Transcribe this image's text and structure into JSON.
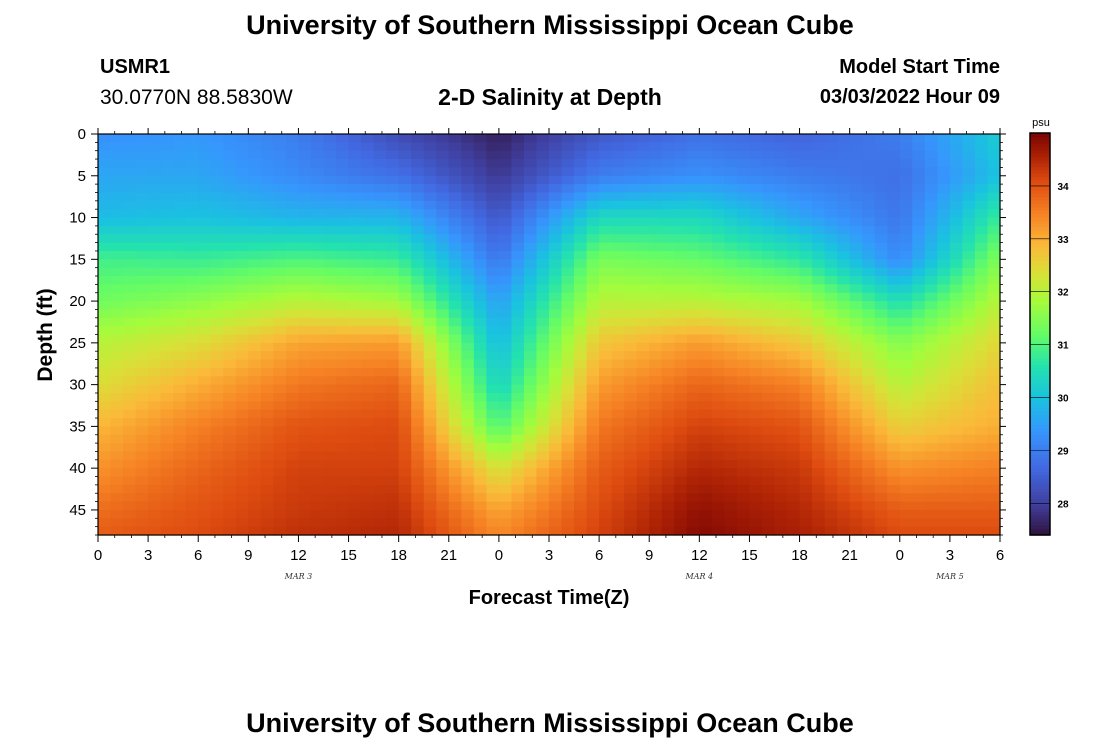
{
  "header": {
    "title": "University of Southern Mississippi Ocean Cube",
    "station": "USMR1",
    "coordinates": "30.0770N  88.5830W",
    "subtitle": "2-D Salinity at Depth",
    "model_start_label": "Model Start Time",
    "model_start_value": "03/03/2022 Hour 09"
  },
  "footer": {
    "title": "University of Southern Mississippi Ocean Cube"
  },
  "chart_data": {
    "type": "heatmap",
    "title": "2-D Salinity at Depth",
    "xlabel": "Forecast Time(Z)",
    "ylabel": "Depth (ft)",
    "x_tick_labels": [
      "0",
      "3",
      "6",
      "9",
      "12",
      "15",
      "18",
      "21",
      "0",
      "3",
      "6",
      "9",
      "12",
      "15",
      "18",
      "21",
      "0",
      "3",
      "6"
    ],
    "x_tick_hours": [
      0,
      3,
      6,
      9,
      12,
      15,
      18,
      21,
      24,
      27,
      30,
      33,
      36,
      39,
      42,
      45,
      48,
      51,
      54
    ],
    "date_labels": [
      {
        "label": "MAR 3",
        "hour": 12
      },
      {
        "label": "MAR 4",
        "hour": 36
      },
      {
        "label": "MAR 5",
        "hour": 51
      }
    ],
    "xlim": [
      0,
      54
    ],
    "ylim": [
      0,
      48
    ],
    "y_inverted": true,
    "y_tick_labels": [
      "0",
      "5",
      "10",
      "15",
      "20",
      "25",
      "30",
      "35",
      "40",
      "45"
    ],
    "y_tick_values": [
      0,
      5,
      10,
      15,
      20,
      25,
      30,
      35,
      40,
      45
    ],
    "colorbar": {
      "unit": "psu",
      "range": [
        27.4,
        35
      ],
      "tick_labels": [
        "28",
        "29",
        "30",
        "31",
        "32",
        "33",
        "34"
      ],
      "tick_values": [
        28,
        29,
        30,
        31,
        32,
        33,
        34
      ],
      "colormap": "turbo"
    },
    "depth_levels": [
      0,
      5,
      10,
      15,
      20,
      25,
      30,
      35,
      40,
      45,
      48
    ],
    "time_hours": [
      0,
      6,
      12,
      18,
      24,
      30,
      36,
      42,
      48,
      54
    ],
    "salinity_psu": [
      [
        29.3,
        29.4,
        29.0,
        28.2,
        27.6,
        28.4,
        28.8,
        28.6,
        29.0,
        30.2
      ],
      [
        29.6,
        29.6,
        29.2,
        28.8,
        27.9,
        29.0,
        29.3,
        29.0,
        28.8,
        30.0
      ],
      [
        29.9,
        30.0,
        29.8,
        29.8,
        28.4,
        30.4,
        30.4,
        29.6,
        28.9,
        30.8
      ],
      [
        30.9,
        30.8,
        31.0,
        30.8,
        28.9,
        31.4,
        31.2,
        30.7,
        29.2,
        31.5
      ],
      [
        31.3,
        31.6,
        32.0,
        31.8,
        29.5,
        32.0,
        32.0,
        31.8,
        30.5,
        32.0
      ],
      [
        32.0,
        32.4,
        33.1,
        33.2,
        29.9,
        32.7,
        33.2,
        32.7,
        31.5,
        32.5
      ],
      [
        32.4,
        33.0,
        33.6,
        33.8,
        30.3,
        33.2,
        33.8,
        33.5,
        32.0,
        32.8
      ],
      [
        32.9,
        33.5,
        34.0,
        34.1,
        31.0,
        33.6,
        34.2,
        34.0,
        32.6,
        33.0
      ],
      [
        33.3,
        33.8,
        34.2,
        34.2,
        32.3,
        33.9,
        34.5,
        34.3,
        33.3,
        33.5
      ],
      [
        33.7,
        34.0,
        34.3,
        34.4,
        33.1,
        34.1,
        34.8,
        34.5,
        33.9,
        33.9
      ],
      [
        33.9,
        34.1,
        34.4,
        34.5,
        33.4,
        34.2,
        34.9,
        34.6,
        34.1,
        34.1
      ]
    ]
  }
}
